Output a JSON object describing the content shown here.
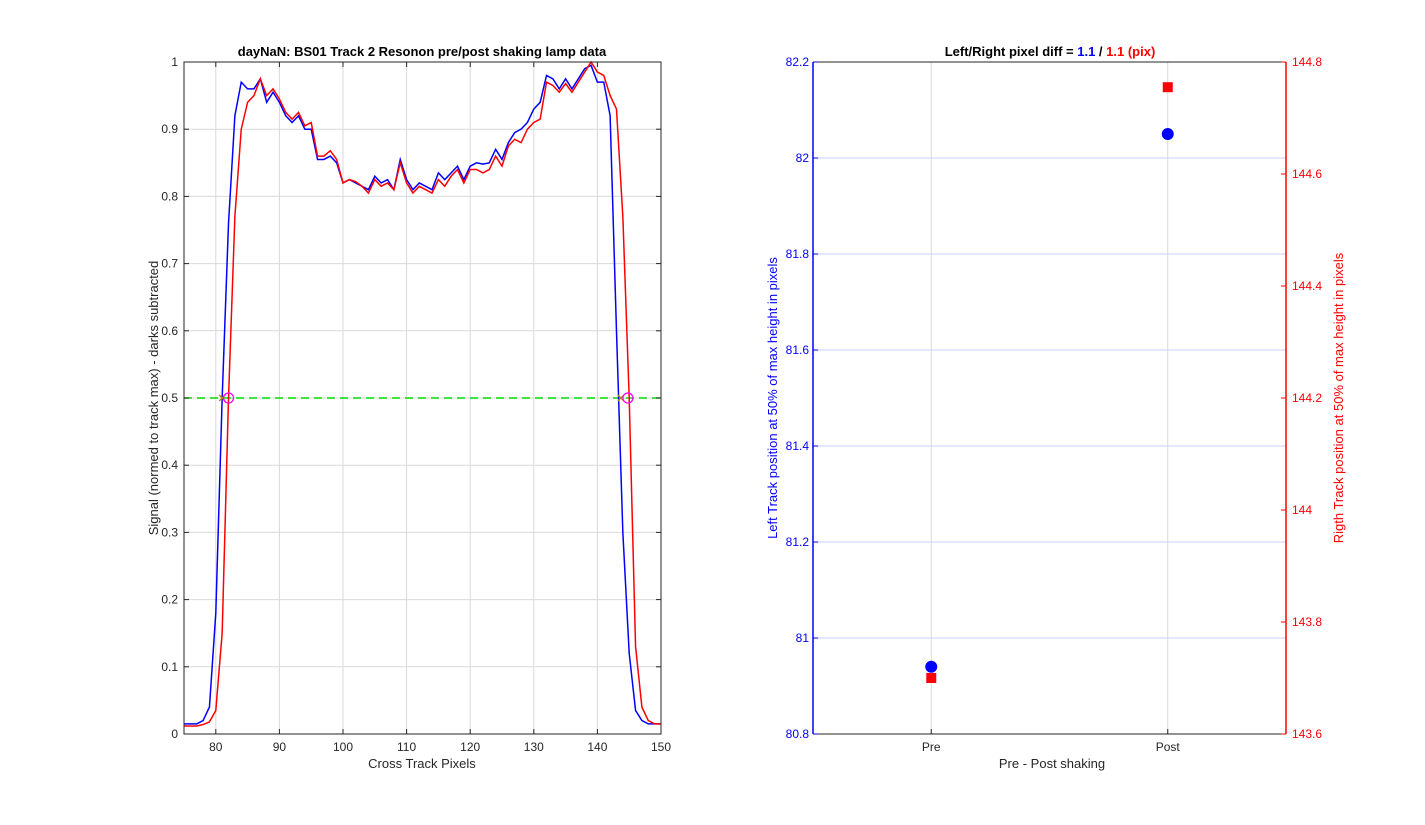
{
  "chart_data": [
    {
      "type": "line",
      "title": "dayNaN: BS01  Track 2 Resonon pre/post shaking lamp data",
      "xlabel": "Cross Track Pixels",
      "ylabel": "Signal (normed to track max) - darks subtracted",
      "xlim": [
        75,
        150
      ],
      "ylim": [
        0,
        1
      ],
      "grid": true,
      "x_ticks": [
        "80",
        "90",
        "100",
        "110",
        "120",
        "130",
        "140",
        "150"
      ],
      "y_ticks": [
        "0",
        "0.1",
        "0.2",
        "0.3",
        "0.4",
        "0.5",
        "0.6",
        "0.7",
        "0.8",
        "0.9",
        "1"
      ],
      "x": [
        75,
        76,
        77,
        78,
        79,
        80,
        81,
        82,
        83,
        84,
        85,
        86,
        87,
        88,
        89,
        90,
        91,
        92,
        93,
        94,
        95,
        96,
        97,
        98,
        99,
        100,
        101,
        102,
        103,
        104,
        105,
        106,
        107,
        108,
        109,
        110,
        111,
        112,
        113,
        114,
        115,
        116,
        117,
        118,
        119,
        120,
        121,
        122,
        123,
        124,
        125,
        126,
        127,
        128,
        129,
        130,
        131,
        132,
        133,
        134,
        135,
        136,
        137,
        138,
        139,
        140,
        141,
        142,
        143,
        144,
        145,
        146,
        147,
        148,
        149,
        150
      ],
      "series": [
        {
          "color": "#0000ff",
          "values": [
            0.015,
            0.015,
            0.015,
            0.02,
            0.04,
            0.18,
            0.5,
            0.76,
            0.92,
            0.97,
            0.96,
            0.96,
            0.975,
            0.94,
            0.955,
            0.94,
            0.92,
            0.91,
            0.92,
            0.9,
            0.9,
            0.855,
            0.855,
            0.86,
            0.85,
            0.82,
            0.825,
            0.82,
            0.815,
            0.81,
            0.83,
            0.82,
            0.825,
            0.81,
            0.855,
            0.825,
            0.81,
            0.82,
            0.815,
            0.81,
            0.835,
            0.825,
            0.835,
            0.845,
            0.825,
            0.845,
            0.85,
            0.848,
            0.85,
            0.87,
            0.855,
            0.88,
            0.895,
            0.9,
            0.91,
            0.93,
            0.94,
            0.98,
            0.975,
            0.96,
            0.975,
            0.96,
            0.975,
            0.99,
            0.995,
            0.97,
            0.97,
            0.92,
            0.6,
            0.3,
            0.12,
            0.035,
            0.02,
            0.015,
            0.015,
            0.015
          ]
        },
        {
          "color": "#ff0000",
          "values": [
            0.012,
            0.012,
            0.012,
            0.014,
            0.018,
            0.035,
            0.15,
            0.5,
            0.77,
            0.9,
            0.94,
            0.95,
            0.975,
            0.95,
            0.96,
            0.945,
            0.925,
            0.915,
            0.925,
            0.905,
            0.91,
            0.86,
            0.86,
            0.868,
            0.855,
            0.82,
            0.825,
            0.822,
            0.815,
            0.805,
            0.825,
            0.815,
            0.82,
            0.81,
            0.85,
            0.82,
            0.805,
            0.815,
            0.81,
            0.805,
            0.825,
            0.815,
            0.83,
            0.84,
            0.82,
            0.84,
            0.84,
            0.835,
            0.84,
            0.86,
            0.845,
            0.875,
            0.885,
            0.88,
            0.9,
            0.91,
            0.915,
            0.97,
            0.965,
            0.955,
            0.968,
            0.955,
            0.97,
            0.985,
            1.0,
            0.985,
            0.98,
            0.95,
            0.93,
            0.77,
            0.5,
            0.13,
            0.04,
            0.02,
            0.015,
            0.015
          ]
        }
      ],
      "reference_line": {
        "y": 0.5,
        "color": "#00dd00",
        "style": "dashed"
      },
      "markers": [
        {
          "x": 81.0,
          "y": 0.5,
          "shape": "x",
          "color": "#b8860b"
        },
        {
          "x": 82.0,
          "y": 0.5,
          "shape": "circle",
          "color": "#ff00ff"
        },
        {
          "x": 143.7,
          "y": 0.5,
          "shape": "x",
          "color": "#b8860b"
        },
        {
          "x": 144.8,
          "y": 0.5,
          "shape": "circle",
          "color": "#ff00ff"
        }
      ]
    },
    {
      "type": "scatter",
      "title_prefix": "Left/Right pixel diff = ",
      "title_left": "1.1",
      "title_sep": " / ",
      "title_right": "1.1 (pix)",
      "xlabel": "Pre - Post shaking",
      "ylabel_left": "Left Track position at 50% of max height in pixels",
      "ylabel_right": "Rigth Track position at 50% of max height in pixels",
      "categories": [
        "Pre",
        "Post"
      ],
      "xlim": [
        0.5,
        2.5
      ],
      "ylim_left": [
        80.8,
        82.2
      ],
      "ylim_right": [
        143.6,
        144.8
      ],
      "y_ticks_left": [
        "80.8",
        "81",
        "81.2",
        "81.4",
        "81.6",
        "81.8",
        "82",
        "82.2"
      ],
      "y_ticks_right": [
        "143.6",
        "143.8",
        "144",
        "144.2",
        "144.4",
        "144.6",
        "144.8"
      ],
      "grid": true,
      "colors": {
        "left": "#0000ff",
        "right": "#ff0000"
      },
      "left_values": [
        80.94,
        82.05
      ],
      "right_values": [
        143.7,
        144.755
      ]
    }
  ]
}
